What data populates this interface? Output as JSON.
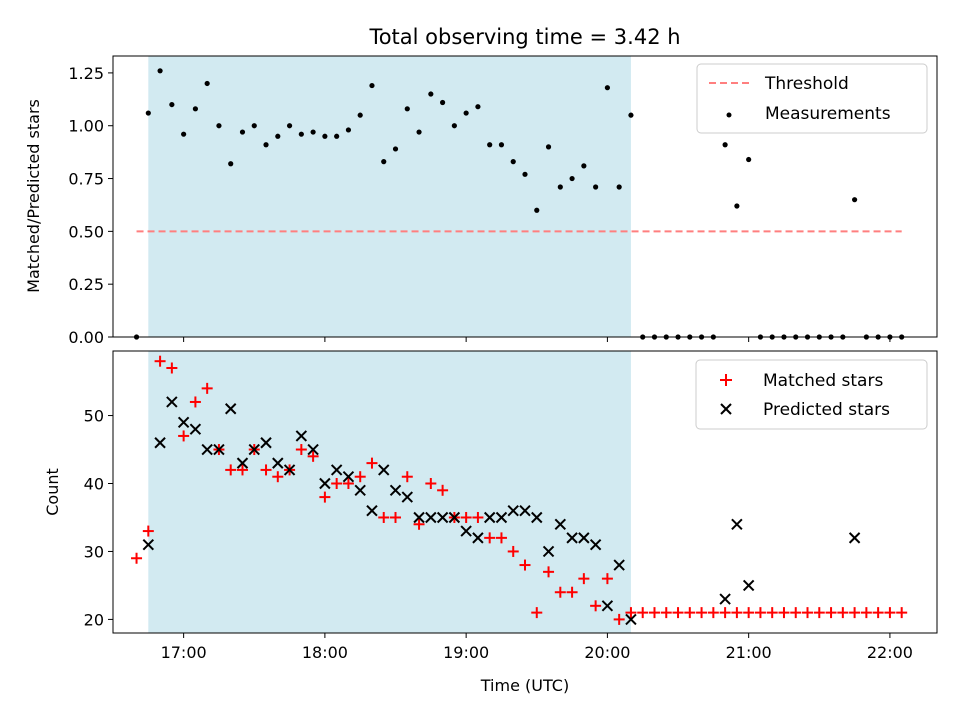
{
  "chart_data": [
    {
      "type": "scatter",
      "title": "Total observing time = 3.42 h",
      "ylabel": "Matched/Predicted stars",
      "xlabel": "",
      "x_format": "time",
      "xlim": [
        "16:30",
        "22:20"
      ],
      "ylim": [
        0,
        1.33
      ],
      "yticks": [
        "0.00",
        "0.25",
        "0.50",
        "0.75",
        "1.00",
        "1.25"
      ],
      "xticks": [
        "17:00",
        "18:00",
        "19:00",
        "20:00",
        "21:00",
        "22:00"
      ],
      "shaded_region": [
        "16:45",
        "20:10"
      ],
      "legend": {
        "position": "top-right",
        "entries": [
          "Threshold",
          "Measurements"
        ]
      },
      "threshold": {
        "name": "Threshold",
        "value": 0.5,
        "x_range": [
          "16:40",
          "22:05"
        ],
        "color": "#ff7f7f"
      },
      "series": [
        {
          "name": "Measurements",
          "color": "#000000",
          "points": [
            [
              "16:40",
              0.0
            ],
            [
              "16:45",
              1.06
            ],
            [
              "16:50",
              1.26
            ],
            [
              "16:55",
              1.1
            ],
            [
              "17:00",
              0.96
            ],
            [
              "17:05",
              1.08
            ],
            [
              "17:10",
              1.2
            ],
            [
              "17:15",
              1.0
            ],
            [
              "17:20",
              0.82
            ],
            [
              "17:25",
              0.97
            ],
            [
              "17:30",
              1.0
            ],
            [
              "17:35",
              0.91
            ],
            [
              "17:40",
              0.95
            ],
            [
              "17:45",
              1.0
            ],
            [
              "17:50",
              0.96
            ],
            [
              "17:55",
              0.97
            ],
            [
              "18:00",
              0.95
            ],
            [
              "18:05",
              0.95
            ],
            [
              "18:10",
              0.98
            ],
            [
              "18:15",
              1.05
            ],
            [
              "18:20",
              1.19
            ],
            [
              "18:25",
              0.83
            ],
            [
              "18:30",
              0.89
            ],
            [
              "18:35",
              1.08
            ],
            [
              "18:40",
              0.97
            ],
            [
              "18:45",
              1.15
            ],
            [
              "18:50",
              1.11
            ],
            [
              "18:55",
              1.0
            ],
            [
              "19:00",
              1.06
            ],
            [
              "19:05",
              1.09
            ],
            [
              "19:10",
              0.91
            ],
            [
              "19:15",
              0.91
            ],
            [
              "19:20",
              0.83
            ],
            [
              "19:25",
              0.77
            ],
            [
              "19:30",
              0.6
            ],
            [
              "19:35",
              0.9
            ],
            [
              "19:40",
              0.71
            ],
            [
              "19:45",
              0.75
            ],
            [
              "19:50",
              0.81
            ],
            [
              "19:55",
              0.71
            ],
            [
              "20:00",
              1.18
            ],
            [
              "20:05",
              0.71
            ],
            [
              "20:10",
              1.05
            ],
            [
              "20:15",
              0.0
            ],
            [
              "20:20",
              0.0
            ],
            [
              "20:25",
              0.0
            ],
            [
              "20:30",
              0.0
            ],
            [
              "20:35",
              0.0
            ],
            [
              "20:40",
              0.0
            ],
            [
              "20:45",
              0.0
            ],
            [
              "20:50",
              0.91
            ],
            [
              "20:55",
              0.62
            ],
            [
              "21:00",
              0.84
            ],
            [
              "21:05",
              0.0
            ],
            [
              "21:10",
              0.0
            ],
            [
              "21:15",
              0.0
            ],
            [
              "21:20",
              0.0
            ],
            [
              "21:25",
              0.0
            ],
            [
              "21:30",
              0.0
            ],
            [
              "21:35",
              0.0
            ],
            [
              "21:40",
              0.0
            ],
            [
              "21:45",
              0.65
            ],
            [
              "21:50",
              0.0
            ],
            [
              "21:55",
              0.0
            ],
            [
              "22:00",
              0.0
            ],
            [
              "22:05",
              0.0
            ]
          ]
        }
      ]
    },
    {
      "type": "scatter",
      "title": "",
      "ylabel": "Count",
      "xlabel": "Time (UTC)",
      "x_format": "time",
      "xlim": [
        "16:30",
        "22:20"
      ],
      "ylim": [
        18,
        59.5
      ],
      "yticks": [
        "20",
        "30",
        "40",
        "50"
      ],
      "xticks": [
        "17:00",
        "18:00",
        "19:00",
        "20:00",
        "21:00",
        "22:00"
      ],
      "shaded_region": [
        "16:45",
        "20:10"
      ],
      "legend": {
        "position": "top-right",
        "entries": [
          "Matched stars",
          "Predicted stars"
        ]
      },
      "series": [
        {
          "name": "Matched stars",
          "marker": "plus",
          "color": "#ff0000",
          "points": [
            [
              "16:40",
              29
            ],
            [
              "16:45",
              33
            ],
            [
              "16:50",
              58
            ],
            [
              "16:55",
              57
            ],
            [
              "17:00",
              47
            ],
            [
              "17:05",
              52
            ],
            [
              "17:10",
              54
            ],
            [
              "17:15",
              45
            ],
            [
              "17:20",
              42
            ],
            [
              "17:25",
              42
            ],
            [
              "17:30",
              45
            ],
            [
              "17:35",
              42
            ],
            [
              "17:40",
              41
            ],
            [
              "17:45",
              42
            ],
            [
              "17:50",
              45
            ],
            [
              "17:55",
              44
            ],
            [
              "18:00",
              38
            ],
            [
              "18:05",
              40
            ],
            [
              "18:10",
              40
            ],
            [
              "18:15",
              41
            ],
            [
              "18:20",
              43
            ],
            [
              "18:25",
              35
            ],
            [
              "18:30",
              35
            ],
            [
              "18:35",
              41
            ],
            [
              "18:40",
              34
            ],
            [
              "18:45",
              40
            ],
            [
              "18:50",
              39
            ],
            [
              "18:55",
              35
            ],
            [
              "19:00",
              35
            ],
            [
              "19:05",
              35
            ],
            [
              "19:10",
              32
            ],
            [
              "19:15",
              32
            ],
            [
              "19:20",
              30
            ],
            [
              "19:25",
              28
            ],
            [
              "19:30",
              21
            ],
            [
              "19:35",
              27
            ],
            [
              "19:40",
              24
            ],
            [
              "19:45",
              24
            ],
            [
              "19:50",
              26
            ],
            [
              "19:55",
              22
            ],
            [
              "20:00",
              26
            ],
            [
              "20:05",
              20
            ],
            [
              "20:10",
              21
            ],
            [
              "20:15",
              21
            ],
            [
              "20:20",
              21
            ],
            [
              "20:25",
              21
            ],
            [
              "20:30",
              21
            ],
            [
              "20:35",
              21
            ],
            [
              "20:40",
              21
            ],
            [
              "20:45",
              21
            ],
            [
              "20:50",
              21
            ],
            [
              "20:55",
              21
            ],
            [
              "21:00",
              21
            ],
            [
              "21:05",
              21
            ],
            [
              "21:10",
              21
            ],
            [
              "21:15",
              21
            ],
            [
              "21:20",
              21
            ],
            [
              "21:25",
              21
            ],
            [
              "21:30",
              21
            ],
            [
              "21:35",
              21
            ],
            [
              "21:40",
              21
            ],
            [
              "21:45",
              21
            ],
            [
              "21:50",
              21
            ],
            [
              "21:55",
              21
            ],
            [
              "22:00",
              21
            ],
            [
              "22:05",
              21
            ]
          ]
        },
        {
          "name": "Predicted stars",
          "marker": "x",
          "color": "#000000",
          "points": [
            [
              "16:45",
              31
            ],
            [
              "16:50",
              46
            ],
            [
              "16:55",
              52
            ],
            [
              "17:00",
              49
            ],
            [
              "17:05",
              48
            ],
            [
              "17:10",
              45
            ],
            [
              "17:15",
              45
            ],
            [
              "17:20",
              51
            ],
            [
              "17:25",
              43
            ],
            [
              "17:30",
              45
            ],
            [
              "17:35",
              46
            ],
            [
              "17:40",
              43
            ],
            [
              "17:45",
              42
            ],
            [
              "17:50",
              47
            ],
            [
              "17:55",
              45
            ],
            [
              "18:00",
              40
            ],
            [
              "18:05",
              42
            ],
            [
              "18:10",
              41
            ],
            [
              "18:15",
              39
            ],
            [
              "18:20",
              36
            ],
            [
              "18:25",
              42
            ],
            [
              "18:30",
              39
            ],
            [
              "18:35",
              38
            ],
            [
              "18:40",
              35
            ],
            [
              "18:45",
              35
            ],
            [
              "18:50",
              35
            ],
            [
              "18:55",
              35
            ],
            [
              "19:00",
              33
            ],
            [
              "19:05",
              32
            ],
            [
              "19:10",
              35
            ],
            [
              "19:15",
              35
            ],
            [
              "19:20",
              36
            ],
            [
              "19:25",
              36
            ],
            [
              "19:30",
              35
            ],
            [
              "19:35",
              30
            ],
            [
              "19:40",
              34
            ],
            [
              "19:45",
              32
            ],
            [
              "19:50",
              32
            ],
            [
              "19:55",
              31
            ],
            [
              "20:00",
              22
            ],
            [
              "20:05",
              28
            ],
            [
              "20:10",
              20
            ],
            [
              "20:50",
              23
            ],
            [
              "20:55",
              34
            ],
            [
              "21:00",
              25
            ],
            [
              "21:45",
              32
            ]
          ]
        }
      ]
    }
  ],
  "colors": {
    "shade": "#add8e6",
    "threshold": "#ff7f7f",
    "matched": "#ff0000",
    "predicted": "#000000",
    "measurements": "#000000"
  }
}
